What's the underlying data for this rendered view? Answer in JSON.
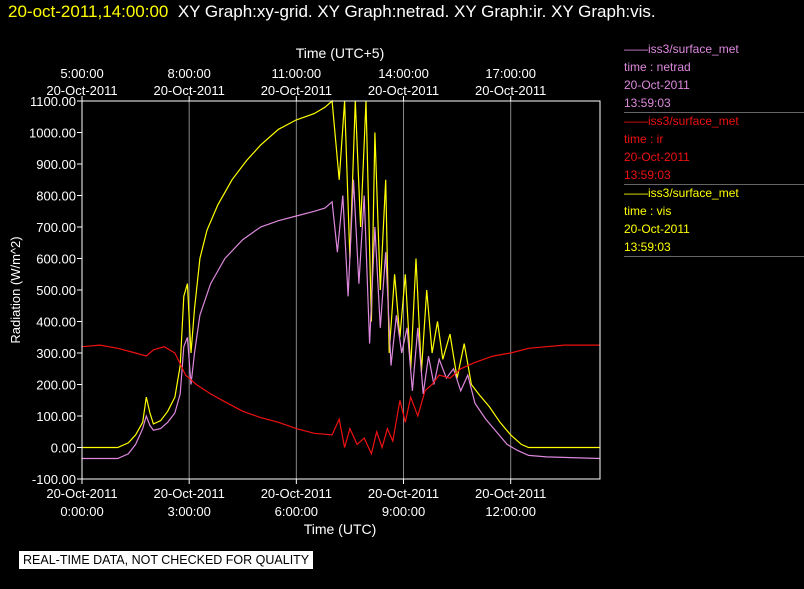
{
  "title": {
    "timestamp": "20-oct-2011,14:00:00",
    "graphs": "XY Graph:xy-grid.  XY Graph:netrad.  XY Graph:ir.  XY Graph:vis."
  },
  "banner": "REAL-TIME DATA, NOT CHECKED FOR QUALITY",
  "legend": [
    {
      "source": "——iss3/surface_met",
      "var": "time : netrad",
      "date": "20-Oct-2011",
      "time": "13:59:03",
      "color": "#dd88dd"
    },
    {
      "source": "——iss3/surface_met",
      "var": "time : ir",
      "date": "20-Oct-2011",
      "time": "13:59:03",
      "color": "#ee1111"
    },
    {
      "source": "——iss3/surface_met",
      "var": "time : vis",
      "date": "20-Oct-2011",
      "time": "13:59:03",
      "color": "#ffff00"
    }
  ],
  "chart_data": {
    "type": "line",
    "xlabel": "Time (UTC)",
    "x2label": "Time (UTC+5)",
    "ylabel": "Radiation  (W/m^2)",
    "xlim": [
      0,
      14.5
    ],
    "ylim": [
      -100,
      1100
    ],
    "grid": "vertical",
    "yticks": [
      "1100.00",
      "1000.00",
      "900.00",
      "800.00",
      "700.00",
      "600.00",
      "500.00",
      "400.00",
      "300.00",
      "200.00",
      "100.00",
      "0.00",
      "-100.00"
    ],
    "ytick_values": [
      1100,
      1000,
      900,
      800,
      700,
      600,
      500,
      400,
      300,
      200,
      100,
      0,
      -100
    ],
    "xticks": [
      {
        "value": 0,
        "date": "20-Oct-2011",
        "time": "0:00:00"
      },
      {
        "value": 3,
        "date": "20-Oct-2011",
        "time": "3:00:00"
      },
      {
        "value": 6,
        "date": "20-Oct-2011",
        "time": "6:00:00"
      },
      {
        "value": 9,
        "date": "20-Oct-2011",
        "time": "9:00:00"
      },
      {
        "value": 12,
        "date": "20-Oct-2011",
        "time": "12:00:00"
      }
    ],
    "x2ticks": [
      {
        "value": 0,
        "time": "5:00:00",
        "date": "20-Oct-2011"
      },
      {
        "value": 3,
        "time": "8:00:00",
        "date": "20-Oct-2011"
      },
      {
        "value": 6,
        "time": "11:00:00",
        "date": "20-Oct-2011"
      },
      {
        "value": 9,
        "time": "14:00:00",
        "date": "20-Oct-2011"
      },
      {
        "value": 12,
        "time": "17:00:00",
        "date": "20-Oct-2011"
      }
    ],
    "series": [
      {
        "name": "time : vis",
        "color": "#ffff00",
        "points": [
          [
            0,
            0
          ],
          [
            1,
            0
          ],
          [
            1.3,
            15
          ],
          [
            1.5,
            40
          ],
          [
            1.7,
            80
          ],
          [
            1.8,
            160
          ],
          [
            1.9,
            110
          ],
          [
            2.0,
            75
          ],
          [
            2.2,
            85
          ],
          [
            2.4,
            115
          ],
          [
            2.6,
            160
          ],
          [
            2.75,
            260
          ],
          [
            2.85,
            480
          ],
          [
            2.95,
            520
          ],
          [
            3.05,
            300
          ],
          [
            3.15,
            440
          ],
          [
            3.3,
            600
          ],
          [
            3.5,
            690
          ],
          [
            3.8,
            770
          ],
          [
            4.2,
            850
          ],
          [
            4.6,
            910
          ],
          [
            5.0,
            960
          ],
          [
            5.5,
            1010
          ],
          [
            6.0,
            1040
          ],
          [
            6.5,
            1060
          ],
          [
            6.8,
            1080
          ],
          [
            7.0,
            1100
          ],
          [
            7.2,
            850
          ],
          [
            7.35,
            1100
          ],
          [
            7.5,
            600
          ],
          [
            7.65,
            1100
          ],
          [
            7.8,
            700
          ],
          [
            7.95,
            1100
          ],
          [
            8.1,
            400
          ],
          [
            8.2,
            1000
          ],
          [
            8.35,
            500
          ],
          [
            8.5,
            850
          ],
          [
            8.6,
            300
          ],
          [
            8.75,
            550
          ],
          [
            8.9,
            350
          ],
          [
            9.05,
            550
          ],
          [
            9.2,
            250
          ],
          [
            9.35,
            600
          ],
          [
            9.5,
            240
          ],
          [
            9.65,
            500
          ],
          [
            9.8,
            300
          ],
          [
            9.95,
            400
          ],
          [
            10.1,
            280
          ],
          [
            10.3,
            360
          ],
          [
            10.5,
            220
          ],
          [
            10.7,
            330
          ],
          [
            10.9,
            200
          ],
          [
            11.1,
            170
          ],
          [
            11.4,
            130
          ],
          [
            11.7,
            80
          ],
          [
            12.0,
            40
          ],
          [
            12.3,
            10
          ],
          [
            12.5,
            0
          ],
          [
            14.5,
            0
          ]
        ]
      },
      {
        "name": "time : netrad",
        "color": "#dd88dd",
        "points": [
          [
            0,
            -35
          ],
          [
            1.0,
            -35
          ],
          [
            1.3,
            -20
          ],
          [
            1.5,
            10
          ],
          [
            1.7,
            60
          ],
          [
            1.8,
            100
          ],
          [
            1.9,
            70
          ],
          [
            2.0,
            55
          ],
          [
            2.2,
            60
          ],
          [
            2.4,
            80
          ],
          [
            2.6,
            110
          ],
          [
            2.75,
            170
          ],
          [
            2.85,
            320
          ],
          [
            2.95,
            350
          ],
          [
            3.05,
            200
          ],
          [
            3.15,
            300
          ],
          [
            3.3,
            420
          ],
          [
            3.6,
            520
          ],
          [
            4.0,
            600
          ],
          [
            4.5,
            660
          ],
          [
            5.0,
            700
          ],
          [
            5.5,
            720
          ],
          [
            6.0,
            735
          ],
          [
            6.5,
            750
          ],
          [
            6.8,
            760
          ],
          [
            7.0,
            780
          ],
          [
            7.15,
            620
          ],
          [
            7.3,
            800
          ],
          [
            7.45,
            480
          ],
          [
            7.6,
            850
          ],
          [
            7.75,
            520
          ],
          [
            7.9,
            800
          ],
          [
            8.05,
            330
          ],
          [
            8.2,
            700
          ],
          [
            8.35,
            380
          ],
          [
            8.5,
            620
          ],
          [
            8.65,
            260
          ],
          [
            8.8,
            420
          ],
          [
            8.95,
            300
          ],
          [
            9.1,
            380
          ],
          [
            9.25,
            180
          ],
          [
            9.4,
            380
          ],
          [
            9.55,
            170
          ],
          [
            9.7,
            290
          ],
          [
            9.85,
            200
          ],
          [
            10.0,
            280
          ],
          [
            10.2,
            220
          ],
          [
            10.4,
            250
          ],
          [
            10.6,
            180
          ],
          [
            10.8,
            230
          ],
          [
            11.0,
            140
          ],
          [
            11.3,
            90
          ],
          [
            11.6,
            50
          ],
          [
            11.9,
            10
          ],
          [
            12.2,
            -10
          ],
          [
            12.5,
            -25
          ],
          [
            13.0,
            -30
          ],
          [
            14.5,
            -35
          ]
        ]
      },
      {
        "name": "time : ir",
        "color": "#ee1111",
        "points": [
          [
            0,
            320
          ],
          [
            0.5,
            325
          ],
          [
            1.0,
            315
          ],
          [
            1.5,
            300
          ],
          [
            1.8,
            290
          ],
          [
            2.0,
            310
          ],
          [
            2.3,
            320
          ],
          [
            2.6,
            300
          ],
          [
            2.9,
            230
          ],
          [
            3.2,
            200
          ],
          [
            3.6,
            170
          ],
          [
            4.0,
            145
          ],
          [
            4.5,
            115
          ],
          [
            5.0,
            95
          ],
          [
            5.5,
            80
          ],
          [
            6.0,
            60
          ],
          [
            6.5,
            45
          ],
          [
            7.0,
            40
          ],
          [
            7.2,
            90
          ],
          [
            7.35,
            0
          ],
          [
            7.5,
            60
          ],
          [
            7.7,
            10
          ],
          [
            7.9,
            30
          ],
          [
            8.1,
            -20
          ],
          [
            8.25,
            50
          ],
          [
            8.4,
            0
          ],
          [
            8.55,
            60
          ],
          [
            8.7,
            20
          ],
          [
            8.9,
            150
          ],
          [
            9.05,
            80
          ],
          [
            9.2,
            160
          ],
          [
            9.4,
            100
          ],
          [
            9.6,
            180
          ],
          [
            9.8,
            200
          ],
          [
            10.0,
            230
          ],
          [
            10.3,
            220
          ],
          [
            10.6,
            250
          ],
          [
            11.0,
            270
          ],
          [
            11.5,
            290
          ],
          [
            12.0,
            300
          ],
          [
            12.5,
            315
          ],
          [
            13.0,
            320
          ],
          [
            13.5,
            325
          ],
          [
            14.5,
            325
          ]
        ]
      }
    ]
  }
}
